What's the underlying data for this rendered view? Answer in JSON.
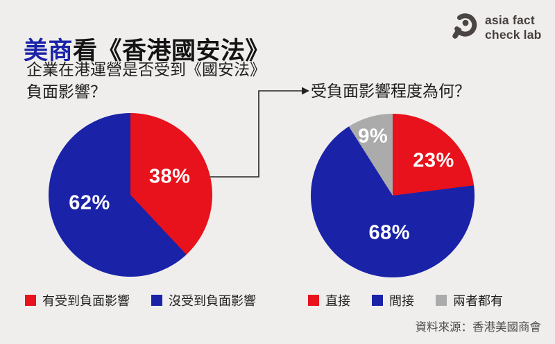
{
  "background": "#f0eeec",
  "title": {
    "accent_text": "美商",
    "rest_text": "看《香港國安法》",
    "accent_color": "#1a23a8",
    "text_color": "#141414"
  },
  "logo": {
    "icon": "magnifier-icon",
    "line1": "asia fact",
    "line2": "check lab",
    "color": "#45403e"
  },
  "source_text": "資料來源：香港美國商會",
  "arrow": {
    "color": "#222222",
    "meaning": "connects 38% slice to follow-up question"
  },
  "chart_data": [
    {
      "type": "pie",
      "title": "企業在港運營是否受到《國安法》負面影響？",
      "title_lines": [
        "企業在港運營是否受到《國安法》",
        "負面影響？"
      ],
      "categories": [
        "有受到負面影響",
        "沒受到負面影響"
      ],
      "values": [
        38,
        62
      ],
      "labels": [
        "38%",
        "62%"
      ],
      "colors": [
        "#e8121c",
        "#1a23a8"
      ],
      "label_pos": [
        {
          "x": 74,
          "y": 39
        },
        {
          "x": 25,
          "y": 55
        }
      ],
      "start_angle_deg": 0,
      "direction": "clockwise",
      "legend_position": "bottom"
    },
    {
      "type": "pie",
      "title": "受負面影響程度為何？",
      "title_lines": [
        "受負面影響程度為何？"
      ],
      "categories": [
        "直接",
        "間接",
        "兩者都有"
      ],
      "values": [
        23,
        68,
        9
      ],
      "labels": [
        "23%",
        "68%",
        "9%"
      ],
      "colors": [
        "#e8121c",
        "#1a23a8",
        "#ababab"
      ],
      "label_pos": [
        {
          "x": 75,
          "y": 29
        },
        {
          "x": 48,
          "y": 73
        },
        {
          "x": 38,
          "y": 14
        }
      ],
      "start_angle_deg": 0,
      "direction": "clockwise",
      "legend_position": "bottom"
    }
  ]
}
